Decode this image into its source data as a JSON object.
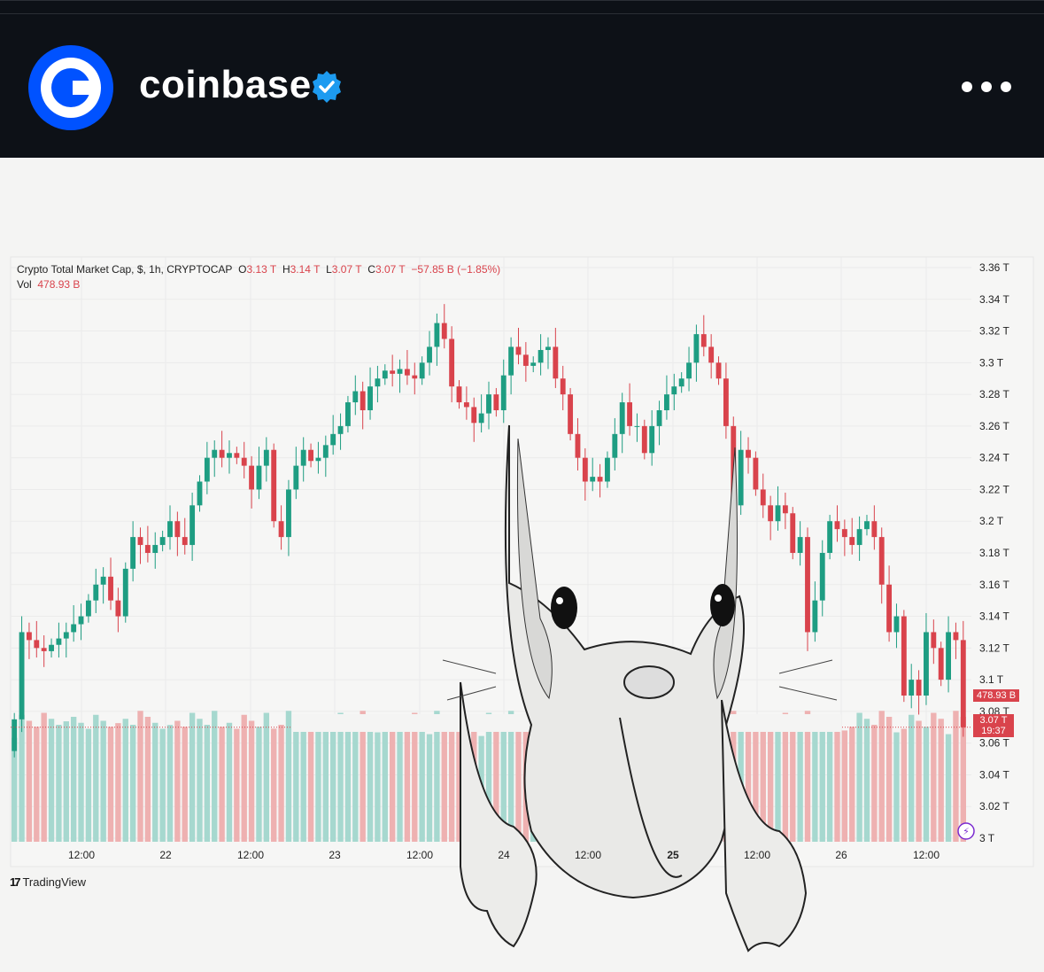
{
  "header": {
    "account_name": "coinbase",
    "verified": true,
    "more_icon": "more-dots-icon",
    "brand_color": "#0052ff"
  },
  "chart_data": {
    "type": "candlestick",
    "legend": {
      "symbol": "Crypto Total Market Cap, $, 1h, CRYPTOCAP",
      "o_label": "O",
      "o_value": "3.13 T",
      "h_label": "H",
      "h_value": "3.14 T",
      "l_label": "L",
      "l_value": "3.07 T",
      "c_label": "C",
      "c_value": "3.07 T",
      "change": "−57.85 B (−1.85%)",
      "vol_label": "Vol",
      "vol_value": "478.93 B"
    },
    "y_axis": {
      "ticks": [
        "3.36 T",
        "3.34 T",
        "3.32 T",
        "3.3 T",
        "3.28 T",
        "3.26 T",
        "3.24 T",
        "3.22 T",
        "3.2 T",
        "3.18 T",
        "3.16 T",
        "3.14 T",
        "3.12 T",
        "3.1 T",
        "3.08 T",
        "3.06 T",
        "3.04 T",
        "3.02 T",
        "3 T"
      ],
      "range": [
        3.0,
        3.36
      ]
    },
    "x_axis": {
      "ticks": [
        "12:00",
        "22",
        "12:00",
        "23",
        "12:00",
        "24",
        "12:00",
        "25",
        "12:00",
        "26",
        "12:00"
      ]
    },
    "badges": {
      "volume": "478.93 B",
      "price": "3.07 T",
      "countdown": "19:37"
    },
    "up_color": "#1e9d82",
    "down_color": "#d9434c",
    "vol_up_color": "#a6d8cf",
    "vol_down_color": "#eeb1b1",
    "candles_close": [
      3.075,
      3.13,
      3.125,
      3.12,
      3.118,
      3.122,
      3.126,
      3.13,
      3.135,
      3.14,
      3.15,
      3.16,
      3.165,
      3.15,
      3.14,
      3.17,
      3.19,
      3.185,
      3.18,
      3.185,
      3.19,
      3.2,
      3.19,
      3.185,
      3.21,
      3.225,
      3.24,
      3.245,
      3.24,
      3.243,
      3.24,
      3.235,
      3.22,
      3.235,
      3.245,
      3.2,
      3.19,
      3.22,
      3.235,
      3.245,
      3.238,
      3.24,
      3.248,
      3.255,
      3.26,
      3.275,
      3.282,
      3.27,
      3.285,
      3.29,
      3.295,
      3.293,
      3.296,
      3.292,
      3.29,
      3.3,
      3.31,
      3.325,
      3.315,
      3.285,
      3.275,
      3.272,
      3.262,
      3.268,
      3.28,
      3.27,
      3.292,
      3.31,
      3.305,
      3.298,
      3.3,
      3.308,
      3.31,
      3.29,
      3.28,
      3.255,
      3.24,
      3.225,
      3.228,
      3.225,
      3.24,
      3.255,
      3.275,
      3.26,
      3.26,
      3.243,
      3.26,
      3.27,
      3.28,
      3.285,
      3.29,
      3.3,
      3.318,
      3.31,
      3.3,
      3.29,
      3.26,
      3.21,
      3.245,
      3.24,
      3.22,
      3.21,
      3.2,
      3.21,
      3.205,
      3.18,
      3.19,
      3.13,
      3.15,
      3.18,
      3.2,
      3.195,
      3.19,
      3.185,
      3.195,
      3.2,
      3.19,
      3.16,
      3.13,
      3.14,
      3.09,
      3.1,
      3.09,
      3.13,
      3.12,
      3.1,
      3.13,
      3.125,
      3.07
    ]
  }
}
